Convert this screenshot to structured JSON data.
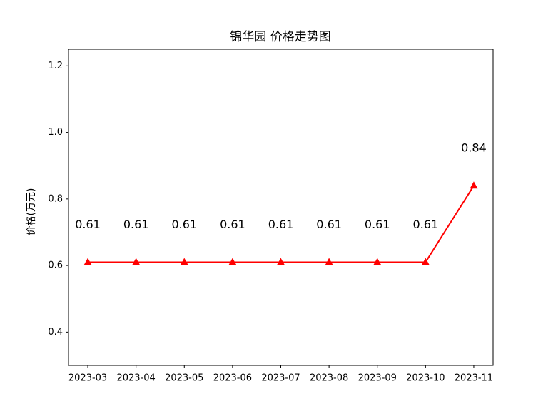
{
  "chart_data": {
    "type": "line",
    "title": "锦华园 价格走势图",
    "y_label": "价格(万元)",
    "categories": [
      "2023-03",
      "2023-04",
      "2023-05",
      "2023-06",
      "2023-07",
      "2023-08",
      "2023-09",
      "2023-10",
      "2023-11"
    ],
    "values": [
      0.61,
      0.61,
      0.61,
      0.61,
      0.61,
      0.61,
      0.61,
      0.61,
      0.84
    ],
    "color": "#ff0000",
    "marker": "triangle",
    "ylim": [
      0.3,
      1.25
    ],
    "yticks": [
      0.4,
      0.6,
      0.8,
      {
        "value": 1,
        "label": "1.0"
      },
      1.2
    ],
    "grid": false,
    "show_value_labels": true
  }
}
